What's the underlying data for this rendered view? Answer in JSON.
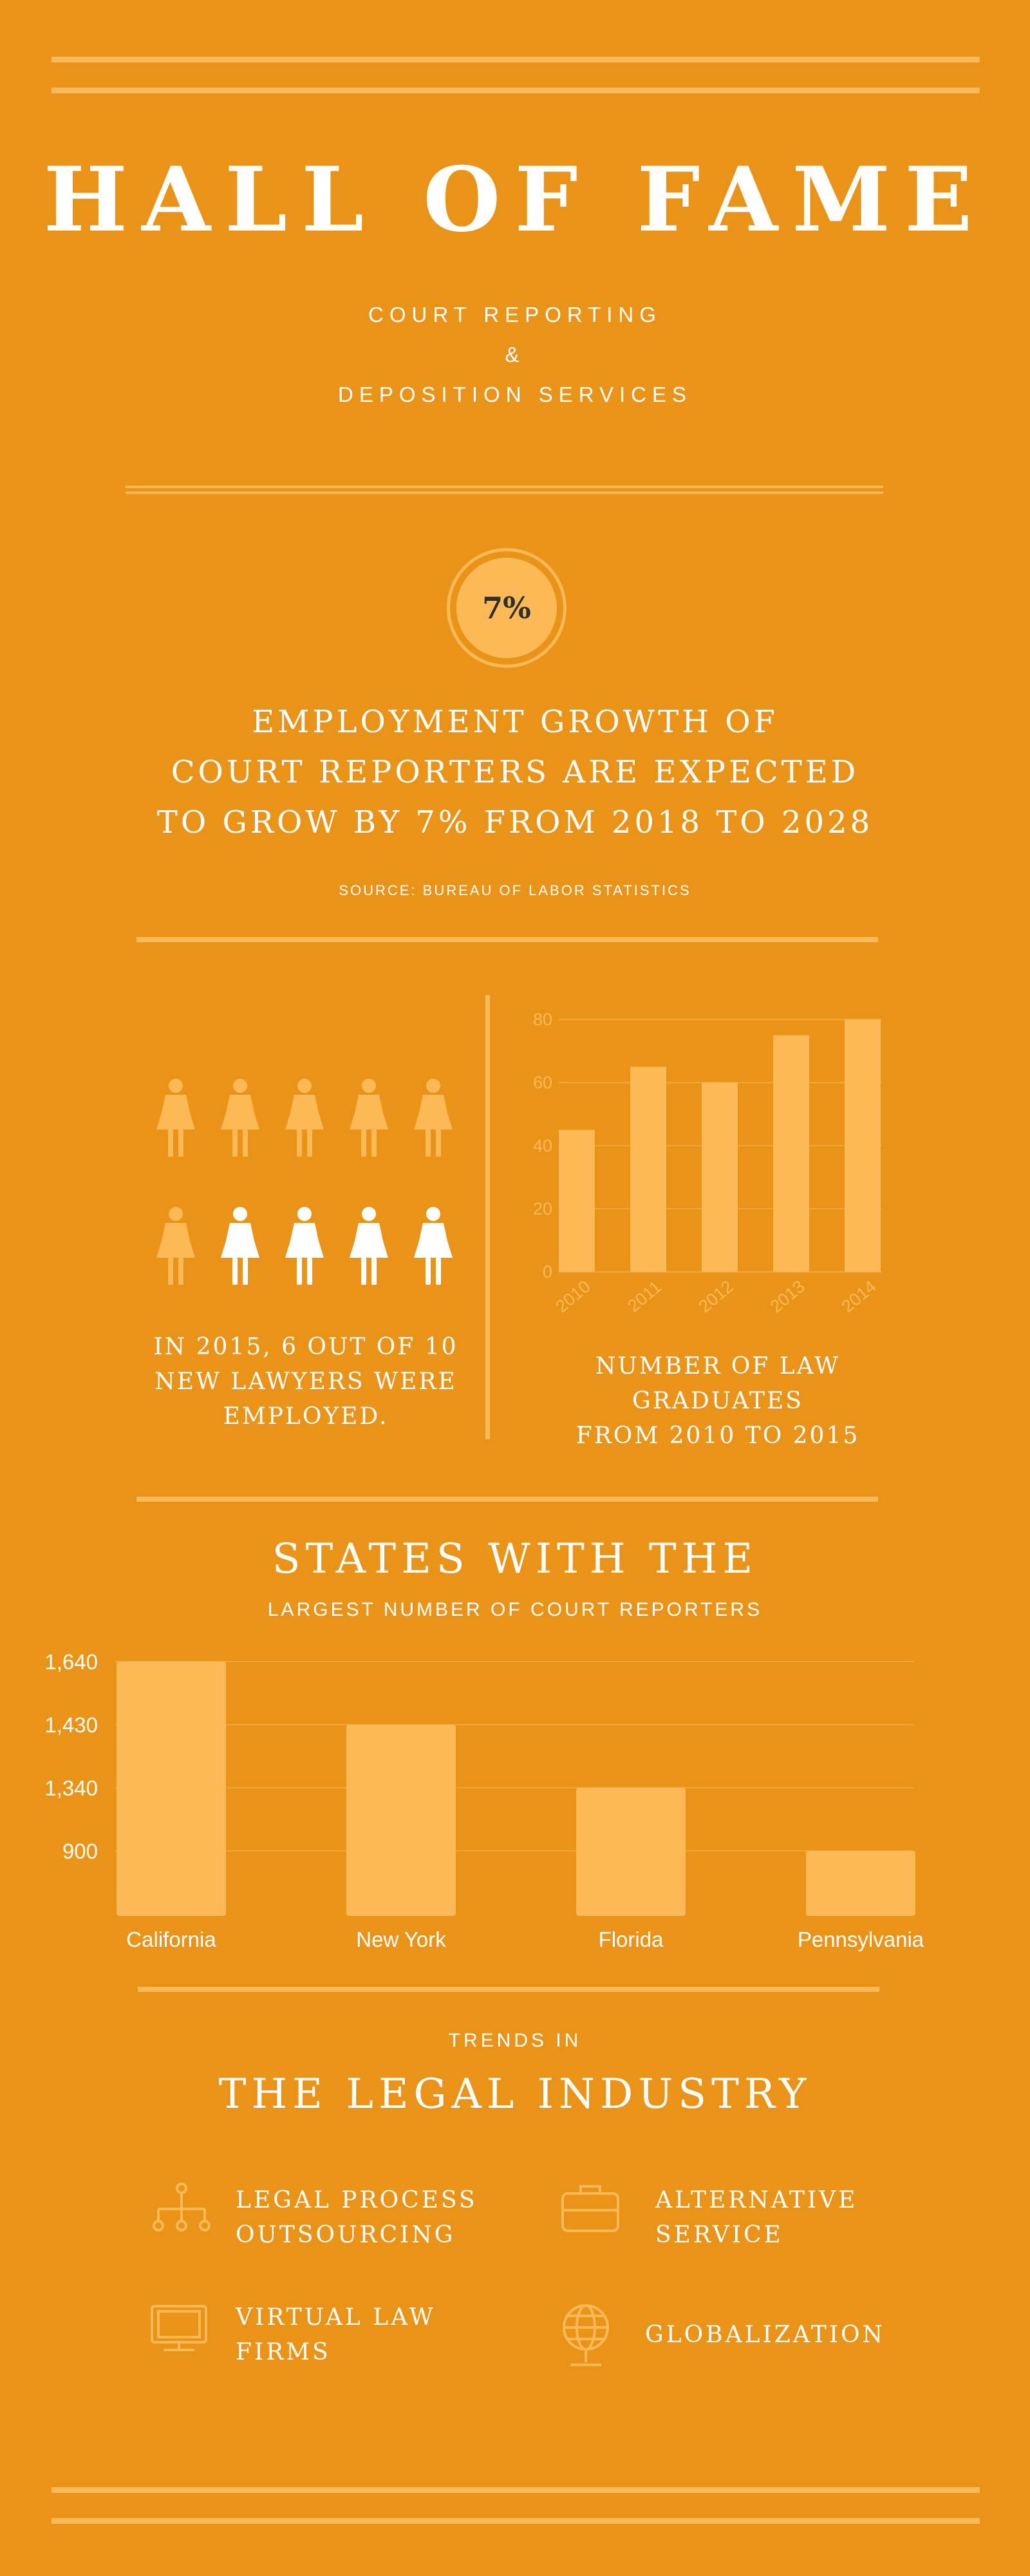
{
  "header": {
    "title": "HALL OF FAME",
    "subtitle_line1": "COURT REPORTING",
    "subtitle_line2": "&",
    "subtitle_line3": "DEPOSITION SERVICES"
  },
  "growth": {
    "badge": "7%",
    "line1": "EMPLOYMENT GROWTH OF",
    "line2": "COURT REPORTERS ARE EXPECTED",
    "line3": "TO GROW BY 7% FROM 2018 TO 2028",
    "source": "SOURCE: BUREAU OF LABOR STATISTICS"
  },
  "lawyers": {
    "employed": 6,
    "total": 10,
    "caption_line1": "IN 2015, 6 OUT OF 10",
    "caption_line2": "NEW LAWYERS WERE",
    "caption_line3": "EMPLOYED.",
    "icon": "woman-icon",
    "employed_color": "#FDB955",
    "other_color": "#FFFFFF"
  },
  "graduates_caption": {
    "line1": "NUMBER OF LAW",
    "line2": "GRADUATES",
    "line3": "FROM 2010 TO 2015"
  },
  "states_heading": {
    "line1": "STATES WITH THE",
    "line2": "LARGEST NUMBER OF COURT REPORTERS"
  },
  "trends": {
    "kicker": "TRENDS IN",
    "title": "THE LEGAL INDUSTRY",
    "items": [
      {
        "icon": "org-chart-icon",
        "line1": "LEGAL PROCESS",
        "line2": "OUTSOURCING"
      },
      {
        "icon": "briefcase-icon",
        "line1": "ALTERNATIVE",
        "line2": "SERVICE"
      },
      {
        "icon": "monitor-icon",
        "line1": "VIRTUAL LAW",
        "line2": "FIRMS"
      },
      {
        "icon": "globe-icon",
        "line1": "GLOBALIZATION",
        "line2": ""
      }
    ]
  },
  "colors": {
    "background": "#E99319",
    "accent": "#FDB955",
    "text": "#FFFFFF"
  },
  "chart_data": [
    {
      "type": "bar",
      "title": "NUMBER OF LAW GRADUATES FROM 2010 TO 2015",
      "categories": [
        "2010",
        "2011",
        "2012",
        "2013",
        "2014"
      ],
      "values": [
        45,
        65,
        60,
        75,
        80
      ],
      "yticks": [
        "0",
        "20",
        "40",
        "60",
        "80"
      ],
      "ylim": [
        0,
        80
      ],
      "grid": true
    },
    {
      "type": "bar",
      "title": "STATES WITH THE LARGEST NUMBER OF COURT REPORTERS",
      "categories": [
        "California",
        "New York",
        "Florida",
        "Pennsylvania"
      ],
      "values": [
        1640,
        1430,
        1340,
        900
      ],
      "yticks": [
        "1,640",
        "1,430",
        "1,340",
        "900"
      ]
    }
  ]
}
